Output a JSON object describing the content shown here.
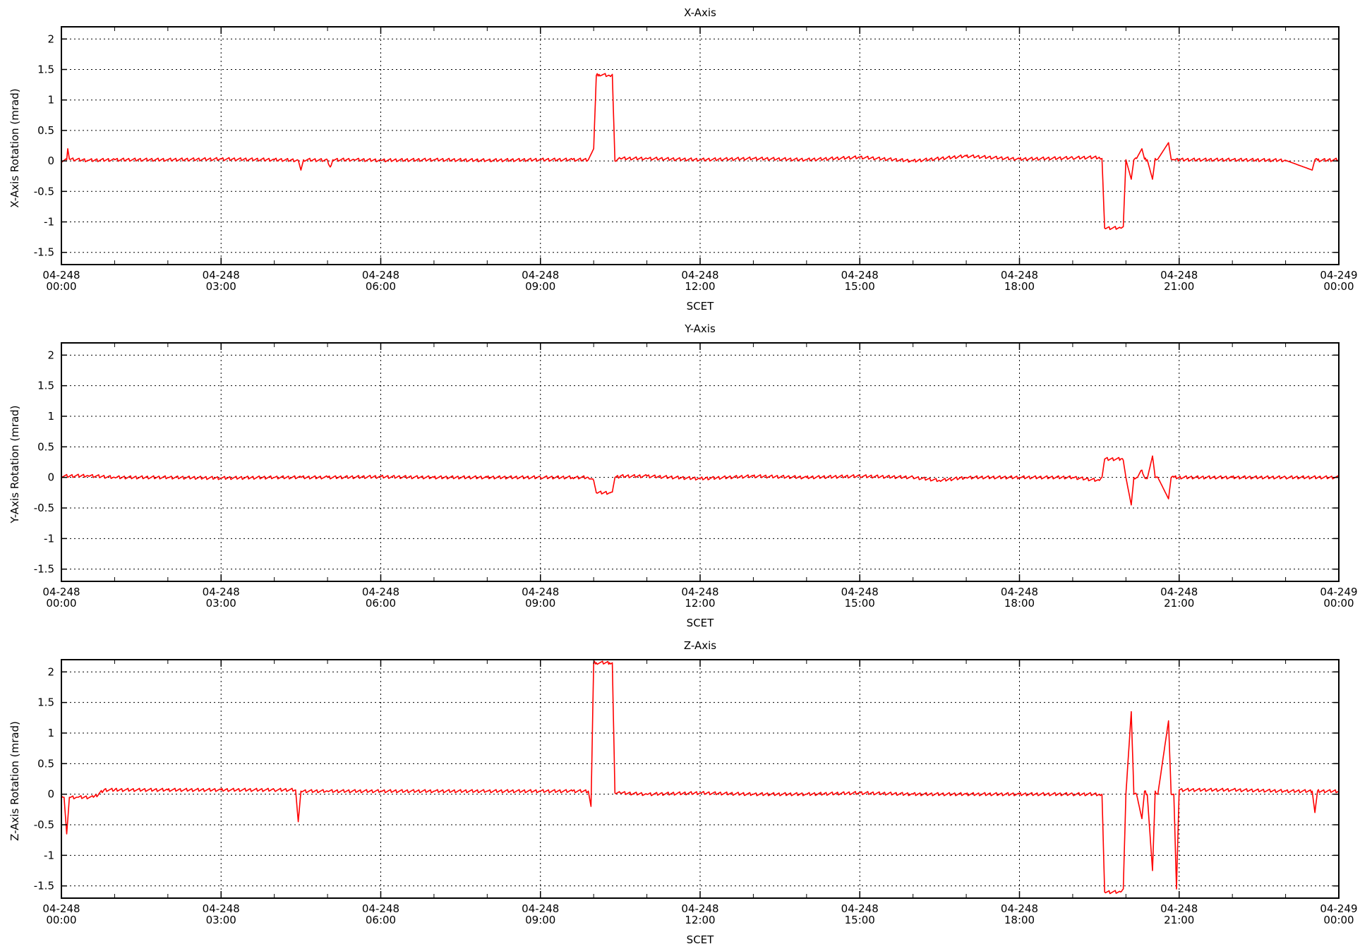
{
  "figure": {
    "background": "#ffffff",
    "line_color": "#ff0000",
    "grid_color": "#000000"
  },
  "chart_data": [
    {
      "type": "line",
      "title": "X-Axis",
      "xlabel": "SCET",
      "ylabel": "X-Axis Rotation (mrad)",
      "xlim": [
        0,
        24
      ],
      "ylim": [
        -1.7,
        2.2
      ],
      "yticks": [
        -1.5,
        -1,
        -0.5,
        0,
        0.5,
        1,
        1.5,
        2
      ],
      "ytick_labels": [
        "-1.5",
        "-1",
        "-0.5",
        "0",
        "0.5",
        "1",
        "1.5",
        "2"
      ],
      "xticks": [
        0,
        3,
        6,
        9,
        12,
        15,
        18,
        21,
        24
      ],
      "xtick_labels": [
        [
          "04-248",
          "00:00"
        ],
        [
          "04-248",
          "03:00"
        ],
        [
          "04-248",
          "06:00"
        ],
        [
          "04-248",
          "09:00"
        ],
        [
          "04-248",
          "12:00"
        ],
        [
          "04-248",
          "15:00"
        ],
        [
          "04-248",
          "18:00"
        ],
        [
          "04-248",
          "21:00"
        ],
        [
          "04-249",
          "00:00"
        ]
      ],
      "grid": true,
      "series": [
        {
          "color": "#ff0000",
          "x": [
            0,
            0.1,
            0.12,
            0.15,
            0.5,
            1,
            2,
            3,
            4,
            4.45,
            4.5,
            4.55,
            5,
            5.05,
            5.1,
            5.5,
            6,
            7,
            8,
            9,
            9.6,
            9.9,
            10,
            10.05,
            10.1,
            10.3,
            10.35,
            10.4,
            10.5,
            11,
            12,
            13,
            14,
            15,
            16,
            17,
            18,
            19,
            19.5,
            19.55,
            19.6,
            19.9,
            19.95,
            20,
            20.1,
            20.15,
            20.2,
            20.3,
            20.35,
            20.4,
            20.5,
            20.55,
            20.6,
            20.8,
            20.85,
            20.9,
            21,
            22,
            23,
            23.5,
            23.55,
            23.6,
            24
          ],
          "y": [
            0,
            0.02,
            0.2,
            0.03,
            0.01,
            0.02,
            0.02,
            0.03,
            0.02,
            0.01,
            -0.15,
            0.02,
            0.01,
            -0.1,
            0.02,
            0.02,
            0.01,
            0.02,
            0.01,
            0.02,
            0.02,
            0.02,
            0.2,
            1.4,
            1.42,
            1.4,
            1.42,
            0,
            0.04,
            0.04,
            0.02,
            0.04,
            0.02,
            0.06,
            0,
            0.08,
            0.03,
            0.05,
            0.06,
            0.04,
            -1.1,
            -1.1,
            -1.08,
            0.02,
            -0.3,
            0.02,
            0.04,
            0.2,
            0.03,
            0.02,
            -0.3,
            0.04,
            0.03,
            0.3,
            0.03,
            0.02,
            0.02,
            0.02,
            0.01,
            -0.15,
            0.02,
            0.01,
            0.02
          ]
        }
      ]
    },
    {
      "type": "line",
      "title": "Y-Axis",
      "xlabel": "SCET",
      "ylabel": "Y-Axis Rotation (mrad)",
      "xlim": [
        0,
        24
      ],
      "ylim": [
        -1.7,
        2.2
      ],
      "yticks": [
        -1.5,
        -1,
        -0.5,
        0,
        0.5,
        1,
        1.5,
        2
      ],
      "ytick_labels": [
        "-1.5",
        "-1",
        "-0.5",
        "0",
        "0.5",
        "1",
        "1.5",
        "2"
      ],
      "xticks": [
        0,
        3,
        6,
        9,
        12,
        15,
        18,
        21,
        24
      ],
      "xtick_labels": [
        [
          "04-248",
          "00:00"
        ],
        [
          "04-248",
          "03:00"
        ],
        [
          "04-248",
          "06:00"
        ],
        [
          "04-248",
          "09:00"
        ],
        [
          "04-248",
          "12:00"
        ],
        [
          "04-248",
          "15:00"
        ],
        [
          "04-248",
          "18:00"
        ],
        [
          "04-248",
          "21:00"
        ],
        [
          "04-249",
          "00:00"
        ]
      ],
      "grid": true,
      "series": [
        {
          "color": "#ff0000",
          "x": [
            0,
            0.5,
            1,
            2,
            3,
            4,
            4.5,
            5,
            6,
            7,
            8,
            9,
            9.6,
            9.9,
            10,
            10.05,
            10.3,
            10.35,
            10.4,
            10.5,
            11,
            12,
            13,
            14,
            15,
            16,
            16.5,
            17,
            18,
            19,
            19.5,
            19.55,
            19.6,
            19.9,
            19.95,
            20,
            20.1,
            20.15,
            20.2,
            20.3,
            20.35,
            20.4,
            20.5,
            20.55,
            20.6,
            20.8,
            20.85,
            20.9,
            21,
            22,
            23,
            24
          ],
          "y": [
            0.02,
            0.03,
            0,
            0,
            -0.01,
            0,
            0,
            0,
            0.01,
            0,
            0,
            0,
            0,
            0,
            -0.05,
            -0.25,
            -0.25,
            -0.24,
            0,
            0.02,
            0.02,
            -0.02,
            0.02,
            0,
            0.02,
            0,
            -0.05,
            0,
            0,
            0,
            -0.05,
            0,
            0.3,
            0.3,
            0.28,
            0,
            -0.45,
            0,
            0,
            0.12,
            0,
            -0.02,
            0.35,
            0,
            0,
            -0.35,
            0,
            0,
            0,
            0,
            0,
            0
          ]
        }
      ]
    },
    {
      "type": "line",
      "title": "Z-Axis",
      "xlabel": "SCET",
      "ylabel": "Z-Axis Rotation (mrad)",
      "xlim": [
        0,
        24
      ],
      "ylim": [
        -1.7,
        2.2
      ],
      "yticks": [
        -1.5,
        -1,
        -0.5,
        0,
        0.5,
        1,
        1.5,
        2
      ],
      "ytick_labels": [
        "-1.5",
        "-1",
        "-0.5",
        "0",
        "0.5",
        "1",
        "1.5",
        "2"
      ],
      "xticks": [
        0,
        3,
        6,
        9,
        12,
        15,
        18,
        21,
        24
      ],
      "xtick_labels": [
        [
          "04-248",
          "00:00"
        ],
        [
          "04-248",
          "03:00"
        ],
        [
          "04-248",
          "06:00"
        ],
        [
          "04-248",
          "09:00"
        ],
        [
          "04-248",
          "12:00"
        ],
        [
          "04-248",
          "15:00"
        ],
        [
          "04-248",
          "18:00"
        ],
        [
          "04-248",
          "21:00"
        ],
        [
          "04-249",
          "00:00"
        ]
      ],
      "grid": true,
      "series": [
        {
          "color": "#ff0000",
          "x": [
            0,
            0.05,
            0.1,
            0.15,
            0.3,
            0.6,
            0.7,
            0.8,
            1,
            2,
            3,
            4,
            4.4,
            4.45,
            4.5,
            5,
            6,
            7,
            8,
            9,
            9.6,
            9.9,
            9.95,
            10,
            10.05,
            10.3,
            10.35,
            10.4,
            10.5,
            11,
            12,
            13,
            14,
            15,
            16,
            17,
            18,
            19,
            19.5,
            19.55,
            19.6,
            19.9,
            19.95,
            20,
            20.1,
            20.15,
            20.2,
            20.3,
            20.35,
            20.4,
            20.5,
            20.55,
            20.6,
            20.8,
            20.85,
            20.9,
            20.95,
            21,
            22,
            23,
            23.5,
            23.55,
            23.6,
            24
          ],
          "y": [
            -0.02,
            -0.05,
            -0.65,
            -0.05,
            -0.05,
            -0.05,
            0,
            0.07,
            0.07,
            0.07,
            0.07,
            0.07,
            0.07,
            -0.45,
            0.05,
            0.05,
            0.05,
            0.05,
            0.05,
            0.05,
            0.05,
            0.05,
            -0.2,
            2.15,
            2.15,
            2.15,
            2.15,
            0.02,
            0.02,
            0,
            0.02,
            0,
            0,
            0.02,
            0,
            0,
            0,
            0,
            0,
            0,
            -1.6,
            -1.6,
            -1.55,
            0,
            1.35,
            0,
            0,
            -0.4,
            0.05,
            0,
            -1.25,
            0.05,
            0,
            1.2,
            0,
            0,
            -1.55,
            0.07,
            0.07,
            0.05,
            0.05,
            -0.3,
            0.05,
            0.05
          ]
        }
      ]
    }
  ]
}
